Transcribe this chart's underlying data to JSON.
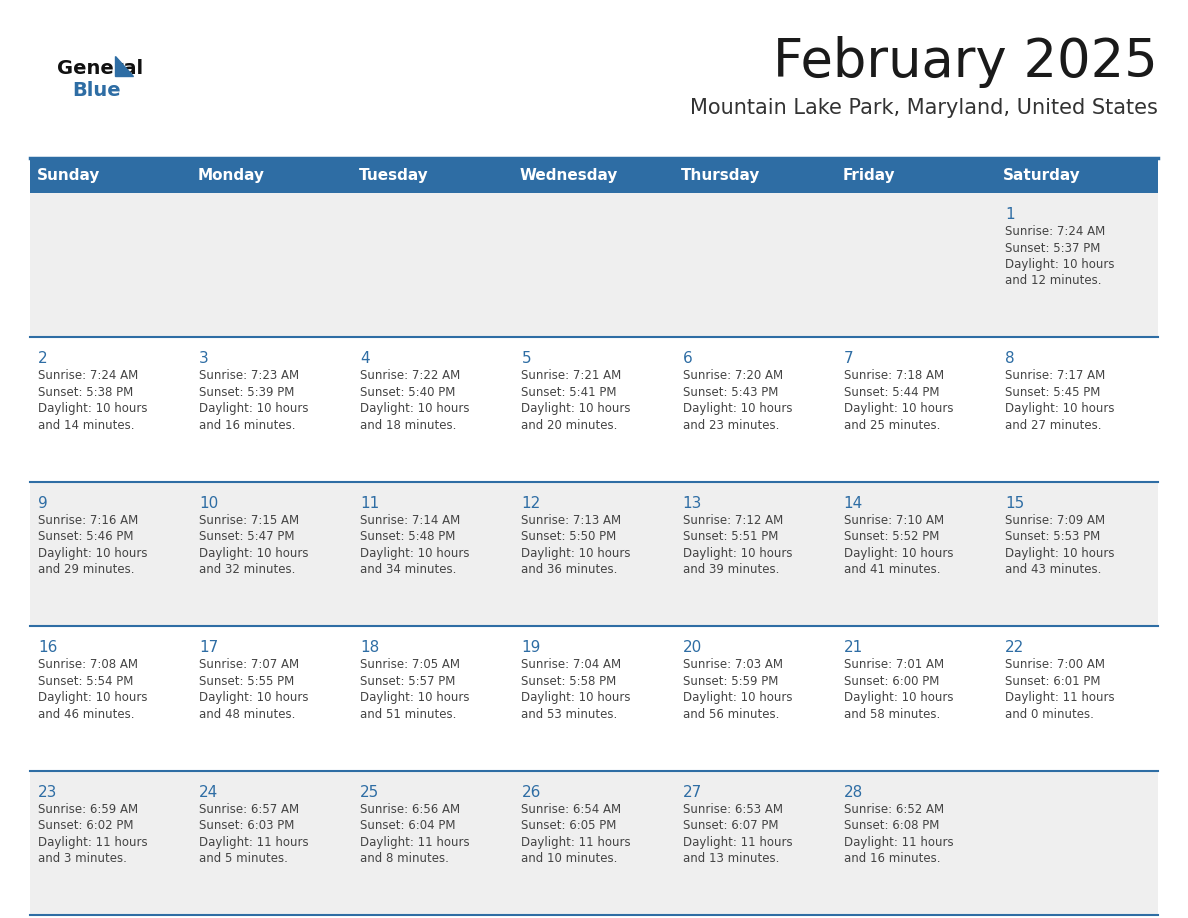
{
  "title": "February 2025",
  "subtitle": "Mountain Lake Park, Maryland, United States",
  "header_bg": "#2E6DA4",
  "header_text_color": "#FFFFFF",
  "cell_bg_gray": "#EFEFEF",
  "cell_bg_white": "#FFFFFF",
  "day_number_color": "#2E6DA4",
  "cell_text_color": "#444444",
  "divider_color": "#2E6DA4",
  "title_color": "#1a1a1a",
  "subtitle_color": "#333333",
  "days_of_week": [
    "Sunday",
    "Monday",
    "Tuesday",
    "Wednesday",
    "Thursday",
    "Friday",
    "Saturday"
  ],
  "weeks": [
    [
      {
        "day": null,
        "sunrise": null,
        "sunset": null,
        "daylight": null
      },
      {
        "day": null,
        "sunrise": null,
        "sunset": null,
        "daylight": null
      },
      {
        "day": null,
        "sunrise": null,
        "sunset": null,
        "daylight": null
      },
      {
        "day": null,
        "sunrise": null,
        "sunset": null,
        "daylight": null
      },
      {
        "day": null,
        "sunrise": null,
        "sunset": null,
        "daylight": null
      },
      {
        "day": null,
        "sunrise": null,
        "sunset": null,
        "daylight": null
      },
      {
        "day": 1,
        "sunrise": "7:24 AM",
        "sunset": "5:37 PM",
        "daylight": "10 hours\nand 12 minutes."
      }
    ],
    [
      {
        "day": 2,
        "sunrise": "7:24 AM",
        "sunset": "5:38 PM",
        "daylight": "10 hours\nand 14 minutes."
      },
      {
        "day": 3,
        "sunrise": "7:23 AM",
        "sunset": "5:39 PM",
        "daylight": "10 hours\nand 16 minutes."
      },
      {
        "day": 4,
        "sunrise": "7:22 AM",
        "sunset": "5:40 PM",
        "daylight": "10 hours\nand 18 minutes."
      },
      {
        "day": 5,
        "sunrise": "7:21 AM",
        "sunset": "5:41 PM",
        "daylight": "10 hours\nand 20 minutes."
      },
      {
        "day": 6,
        "sunrise": "7:20 AM",
        "sunset": "5:43 PM",
        "daylight": "10 hours\nand 23 minutes."
      },
      {
        "day": 7,
        "sunrise": "7:18 AM",
        "sunset": "5:44 PM",
        "daylight": "10 hours\nand 25 minutes."
      },
      {
        "day": 8,
        "sunrise": "7:17 AM",
        "sunset": "5:45 PM",
        "daylight": "10 hours\nand 27 minutes."
      }
    ],
    [
      {
        "day": 9,
        "sunrise": "7:16 AM",
        "sunset": "5:46 PM",
        "daylight": "10 hours\nand 29 minutes."
      },
      {
        "day": 10,
        "sunrise": "7:15 AM",
        "sunset": "5:47 PM",
        "daylight": "10 hours\nand 32 minutes."
      },
      {
        "day": 11,
        "sunrise": "7:14 AM",
        "sunset": "5:48 PM",
        "daylight": "10 hours\nand 34 minutes."
      },
      {
        "day": 12,
        "sunrise": "7:13 AM",
        "sunset": "5:50 PM",
        "daylight": "10 hours\nand 36 minutes."
      },
      {
        "day": 13,
        "sunrise": "7:12 AM",
        "sunset": "5:51 PM",
        "daylight": "10 hours\nand 39 minutes."
      },
      {
        "day": 14,
        "sunrise": "7:10 AM",
        "sunset": "5:52 PM",
        "daylight": "10 hours\nand 41 minutes."
      },
      {
        "day": 15,
        "sunrise": "7:09 AM",
        "sunset": "5:53 PM",
        "daylight": "10 hours\nand 43 minutes."
      }
    ],
    [
      {
        "day": 16,
        "sunrise": "7:08 AM",
        "sunset": "5:54 PM",
        "daylight": "10 hours\nand 46 minutes."
      },
      {
        "day": 17,
        "sunrise": "7:07 AM",
        "sunset": "5:55 PM",
        "daylight": "10 hours\nand 48 minutes."
      },
      {
        "day": 18,
        "sunrise": "7:05 AM",
        "sunset": "5:57 PM",
        "daylight": "10 hours\nand 51 minutes."
      },
      {
        "day": 19,
        "sunrise": "7:04 AM",
        "sunset": "5:58 PM",
        "daylight": "10 hours\nand 53 minutes."
      },
      {
        "day": 20,
        "sunrise": "7:03 AM",
        "sunset": "5:59 PM",
        "daylight": "10 hours\nand 56 minutes."
      },
      {
        "day": 21,
        "sunrise": "7:01 AM",
        "sunset": "6:00 PM",
        "daylight": "10 hours\nand 58 minutes."
      },
      {
        "day": 22,
        "sunrise": "7:00 AM",
        "sunset": "6:01 PM",
        "daylight": "11 hours\nand 0 minutes."
      }
    ],
    [
      {
        "day": 23,
        "sunrise": "6:59 AM",
        "sunset": "6:02 PM",
        "daylight": "11 hours\nand 3 minutes."
      },
      {
        "day": 24,
        "sunrise": "6:57 AM",
        "sunset": "6:03 PM",
        "daylight": "11 hours\nand 5 minutes."
      },
      {
        "day": 25,
        "sunrise": "6:56 AM",
        "sunset": "6:04 PM",
        "daylight": "11 hours\nand 8 minutes."
      },
      {
        "day": 26,
        "sunrise": "6:54 AM",
        "sunset": "6:05 PM",
        "daylight": "11 hours\nand 10 minutes."
      },
      {
        "day": 27,
        "sunrise": "6:53 AM",
        "sunset": "6:07 PM",
        "daylight": "11 hours\nand 13 minutes."
      },
      {
        "day": 28,
        "sunrise": "6:52 AM",
        "sunset": "6:08 PM",
        "daylight": "11 hours\nand 16 minutes."
      },
      {
        "day": null,
        "sunrise": null,
        "sunset": null,
        "daylight": null
      }
    ]
  ]
}
